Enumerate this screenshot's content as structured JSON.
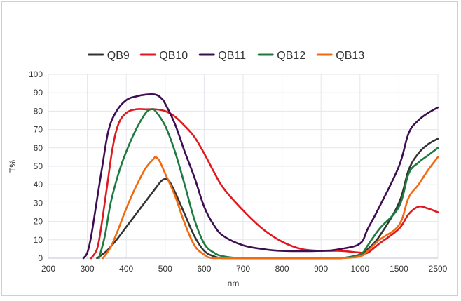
{
  "chart_data": {
    "type": "line",
    "title": "",
    "xlabel": "nm",
    "ylabel": "T%",
    "ylim": [
      0,
      100
    ],
    "y_ticks": [
      "0",
      "10",
      "20",
      "30",
      "40",
      "50",
      "60",
      "70",
      "80",
      "90",
      "100"
    ],
    "x_tick_labels": [
      "200",
      "300",
      "400",
      "500",
      "600",
      "700",
      "800",
      "900",
      "1000",
      "1500",
      "2500"
    ],
    "x_scale_note": "piecewise axis: 200-1000 nm linear in 100 nm steps, then 1500 and 2500",
    "legend_position": "top-center",
    "grid": true,
    "series": [
      {
        "name": "QB9",
        "color": "#333333",
        "points": [
          [
            325,
            0
          ],
          [
            350,
            4
          ],
          [
            375,
            10
          ],
          [
            400,
            17
          ],
          [
            425,
            24
          ],
          [
            450,
            31
          ],
          [
            475,
            38
          ],
          [
            490,
            42
          ],
          [
            500,
            43
          ],
          [
            510,
            42
          ],
          [
            525,
            36
          ],
          [
            550,
            24
          ],
          [
            575,
            12
          ],
          [
            600,
            4
          ],
          [
            625,
            1
          ],
          [
            650,
            0
          ],
          [
            700,
            0
          ],
          [
            800,
            0
          ],
          [
            900,
            0
          ],
          [
            950,
            0
          ],
          [
            1000,
            2
          ],
          [
            1100,
            5
          ],
          [
            1250,
            12
          ],
          [
            1500,
            30
          ],
          [
            1750,
            48
          ],
          [
            2000,
            57
          ],
          [
            2250,
            62
          ],
          [
            2500,
            65
          ]
        ]
      },
      {
        "name": "QB10",
        "color": "#e0191e",
        "points": [
          [
            310,
            0
          ],
          [
            325,
            5
          ],
          [
            335,
            16
          ],
          [
            350,
            38
          ],
          [
            365,
            60
          ],
          [
            380,
            73
          ],
          [
            400,
            79
          ],
          [
            425,
            81
          ],
          [
            450,
            81
          ],
          [
            475,
            81
          ],
          [
            500,
            80
          ],
          [
            525,
            77
          ],
          [
            550,
            72
          ],
          [
            575,
            66
          ],
          [
            600,
            57
          ],
          [
            625,
            47
          ],
          [
            650,
            38
          ],
          [
            700,
            26
          ],
          [
            750,
            16
          ],
          [
            800,
            9
          ],
          [
            850,
            5
          ],
          [
            900,
            4
          ],
          [
            950,
            4
          ],
          [
            1000,
            3
          ],
          [
            1100,
            3
          ],
          [
            1250,
            8
          ],
          [
            1500,
            16
          ],
          [
            1750,
            24
          ],
          [
            2000,
            28
          ],
          [
            2250,
            27
          ],
          [
            2500,
            25
          ]
        ]
      },
      {
        "name": "QB11",
        "color": "#3f0d52",
        "points": [
          [
            290,
            0
          ],
          [
            300,
            3
          ],
          [
            310,
            12
          ],
          [
            325,
            32
          ],
          [
            340,
            52
          ],
          [
            355,
            70
          ],
          [
            375,
            80
          ],
          [
            400,
            86
          ],
          [
            425,
            88
          ],
          [
            450,
            89
          ],
          [
            475,
            89
          ],
          [
            490,
            87
          ],
          [
            500,
            84
          ],
          [
            525,
            73
          ],
          [
            550,
            58
          ],
          [
            575,
            44
          ],
          [
            600,
            28
          ],
          [
            625,
            18
          ],
          [
            650,
            12
          ],
          [
            700,
            7
          ],
          [
            750,
            5
          ],
          [
            800,
            4
          ],
          [
            900,
            4
          ],
          [
            950,
            5
          ],
          [
            1000,
            8
          ],
          [
            1100,
            16
          ],
          [
            1250,
            28
          ],
          [
            1500,
            50
          ],
          [
            1750,
            68
          ],
          [
            2000,
            75
          ],
          [
            2250,
            79
          ],
          [
            2500,
            82
          ]
        ]
      },
      {
        "name": "QB12",
        "color": "#1e7a3e",
        "points": [
          [
            330,
            0
          ],
          [
            345,
            12
          ],
          [
            360,
            30
          ],
          [
            380,
            46
          ],
          [
            400,
            58
          ],
          [
            425,
            70
          ],
          [
            450,
            79
          ],
          [
            465,
            81
          ],
          [
            475,
            80
          ],
          [
            500,
            72
          ],
          [
            525,
            58
          ],
          [
            550,
            40
          ],
          [
            575,
            21
          ],
          [
            600,
            8
          ],
          [
            625,
            3
          ],
          [
            650,
            1
          ],
          [
            700,
            0
          ],
          [
            800,
            0
          ],
          [
            900,
            0
          ],
          [
            950,
            0
          ],
          [
            1000,
            2
          ],
          [
            1100,
            7
          ],
          [
            1250,
            16
          ],
          [
            1500,
            28
          ],
          [
            1750,
            46
          ],
          [
            2000,
            52
          ],
          [
            2250,
            56
          ],
          [
            2500,
            60
          ]
        ]
      },
      {
        "name": "QB13",
        "color": "#f26a10",
        "points": [
          [
            340,
            0
          ],
          [
            360,
            6
          ],
          [
            380,
            16
          ],
          [
            400,
            27
          ],
          [
            425,
            39
          ],
          [
            450,
            49
          ],
          [
            470,
            54
          ],
          [
            475,
            55
          ],
          [
            485,
            53
          ],
          [
            500,
            46
          ],
          [
            525,
            34
          ],
          [
            550,
            19
          ],
          [
            575,
            7
          ],
          [
            600,
            2
          ],
          [
            625,
            0
          ],
          [
            700,
            0
          ],
          [
            800,
            0
          ],
          [
            900,
            0
          ],
          [
            950,
            0
          ],
          [
            1000,
            1
          ],
          [
            1100,
            4
          ],
          [
            1250,
            10
          ],
          [
            1500,
            18
          ],
          [
            1750,
            33
          ],
          [
            2000,
            40
          ],
          [
            2250,
            48
          ],
          [
            2500,
            55
          ]
        ]
      }
    ]
  }
}
